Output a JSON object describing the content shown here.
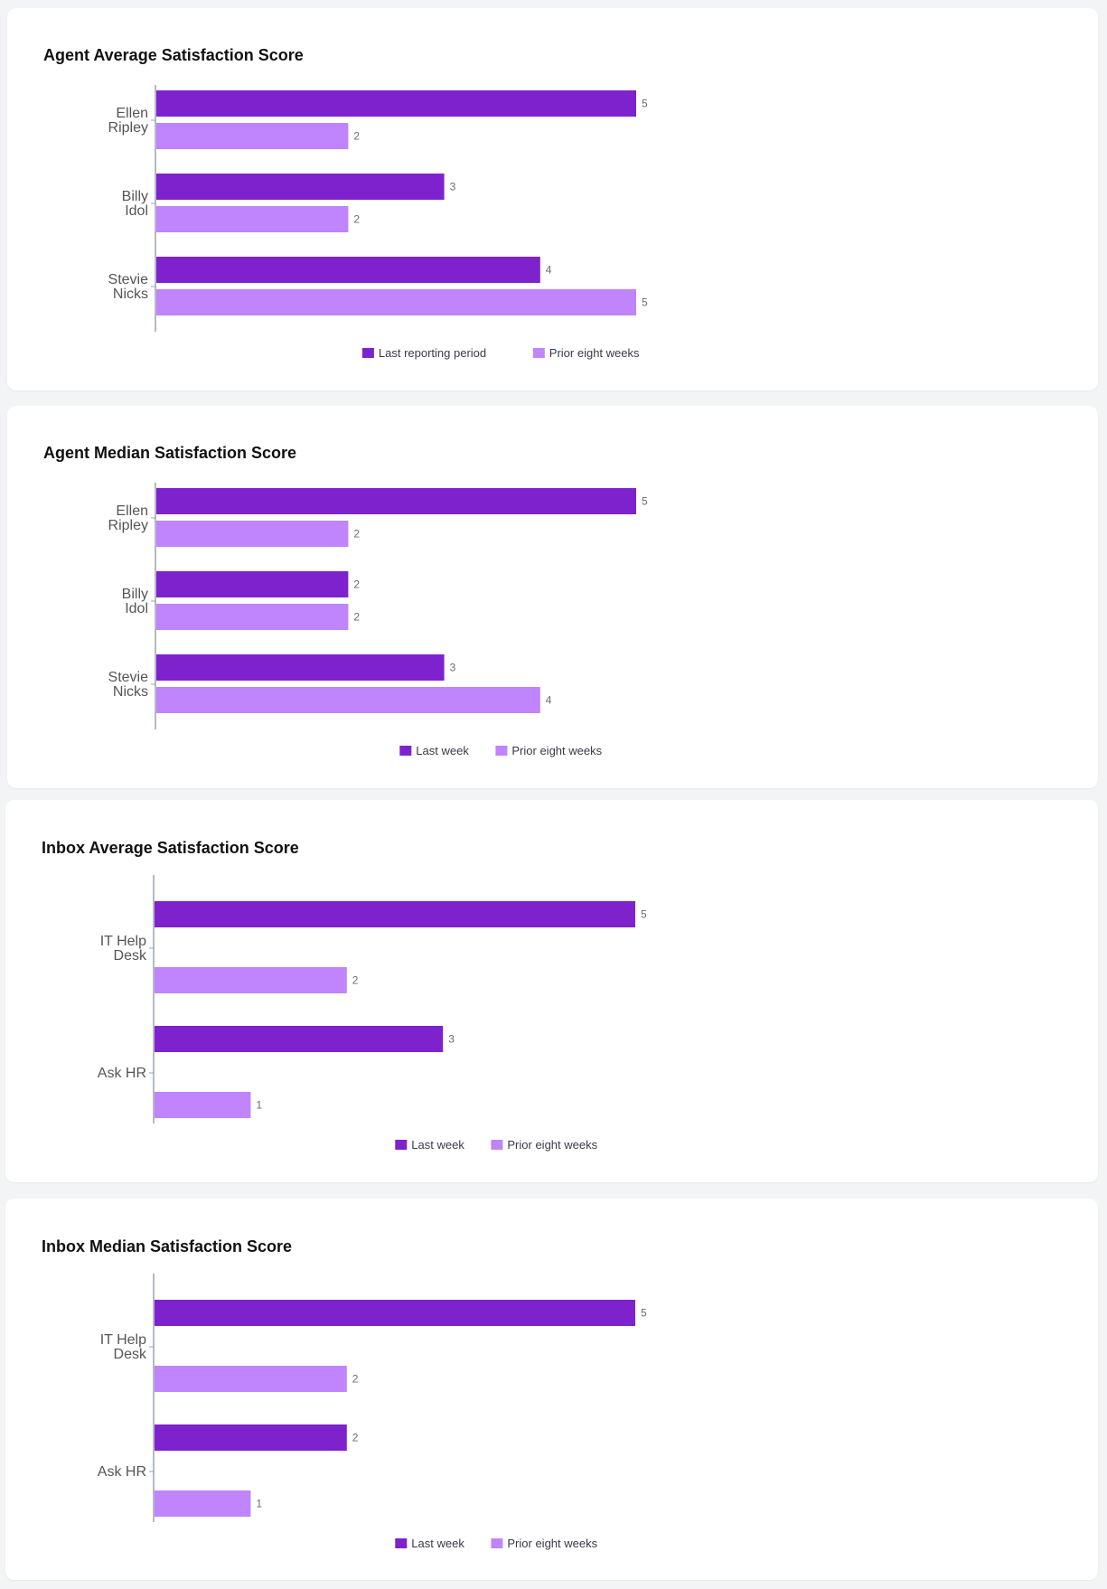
{
  "colors": {
    "primary_series": "#7e22ce",
    "secondary_series": "#c084fc",
    "axis": "#9ca3af"
  },
  "cards": [
    {
      "title": "Agent Average Satisfaction Score",
      "legend": [
        "Last reporting period",
        "Prior eight weeks"
      ]
    },
    {
      "title": "Agent Median Satisfaction Score",
      "legend": [
        "Last week",
        "Prior eight weeks"
      ]
    },
    {
      "title": "Inbox Average Satisfaction Score",
      "legend": [
        "Last week",
        "Prior eight weeks"
      ]
    },
    {
      "title": "Inbox Median Satisfaction Score",
      "legend": [
        "Last week",
        "Prior eight weeks"
      ]
    }
  ],
  "chart_data": [
    {
      "type": "bar",
      "orientation": "horizontal",
      "title": "Agent Average Satisfaction Score",
      "categories": [
        [
          "Ellen",
          "Ripley"
        ],
        [
          "Billy",
          "Idol"
        ],
        [
          "Stevie",
          "Nicks"
        ]
      ],
      "series": [
        {
          "name": "Last reporting period",
          "values": [
            5,
            3,
            4
          ]
        },
        {
          "name": "Prior eight weeks",
          "values": [
            2,
            2,
            5
          ]
        }
      ],
      "xlim": [
        0,
        5
      ],
      "grid": false,
      "legend_position": "bottom"
    },
    {
      "type": "bar",
      "orientation": "horizontal",
      "title": "Agent Median Satisfaction Score",
      "categories": [
        [
          "Ellen",
          "Ripley"
        ],
        [
          "Billy",
          "Idol"
        ],
        [
          "Stevie",
          "Nicks"
        ]
      ],
      "series": [
        {
          "name": "Last week",
          "values": [
            5,
            2,
            3
          ]
        },
        {
          "name": "Prior eight weeks",
          "values": [
            2,
            2,
            4
          ]
        }
      ],
      "xlim": [
        0,
        5
      ],
      "grid": false,
      "legend_position": "bottom"
    },
    {
      "type": "bar",
      "orientation": "horizontal",
      "title": "Inbox Average Satisfaction Score",
      "categories": [
        [
          "IT Help",
          "Desk"
        ],
        [
          "Ask HR"
        ]
      ],
      "series": [
        {
          "name": "Last week",
          "values": [
            5,
            3
          ]
        },
        {
          "name": "Prior eight weeks",
          "values": [
            2,
            1
          ]
        }
      ],
      "xlim": [
        0,
        5
      ],
      "grid": false,
      "legend_position": "bottom"
    },
    {
      "type": "bar",
      "orientation": "horizontal",
      "title": "Inbox Median Satisfaction Score",
      "categories": [
        [
          "IT Help",
          "Desk"
        ],
        [
          "Ask HR"
        ]
      ],
      "series": [
        {
          "name": "Last week",
          "values": [
            5,
            2
          ]
        },
        {
          "name": "Prior eight weeks",
          "values": [
            2,
            1
          ]
        }
      ],
      "xlim": [
        0,
        5
      ],
      "grid": false,
      "legend_position": "bottom"
    }
  ]
}
